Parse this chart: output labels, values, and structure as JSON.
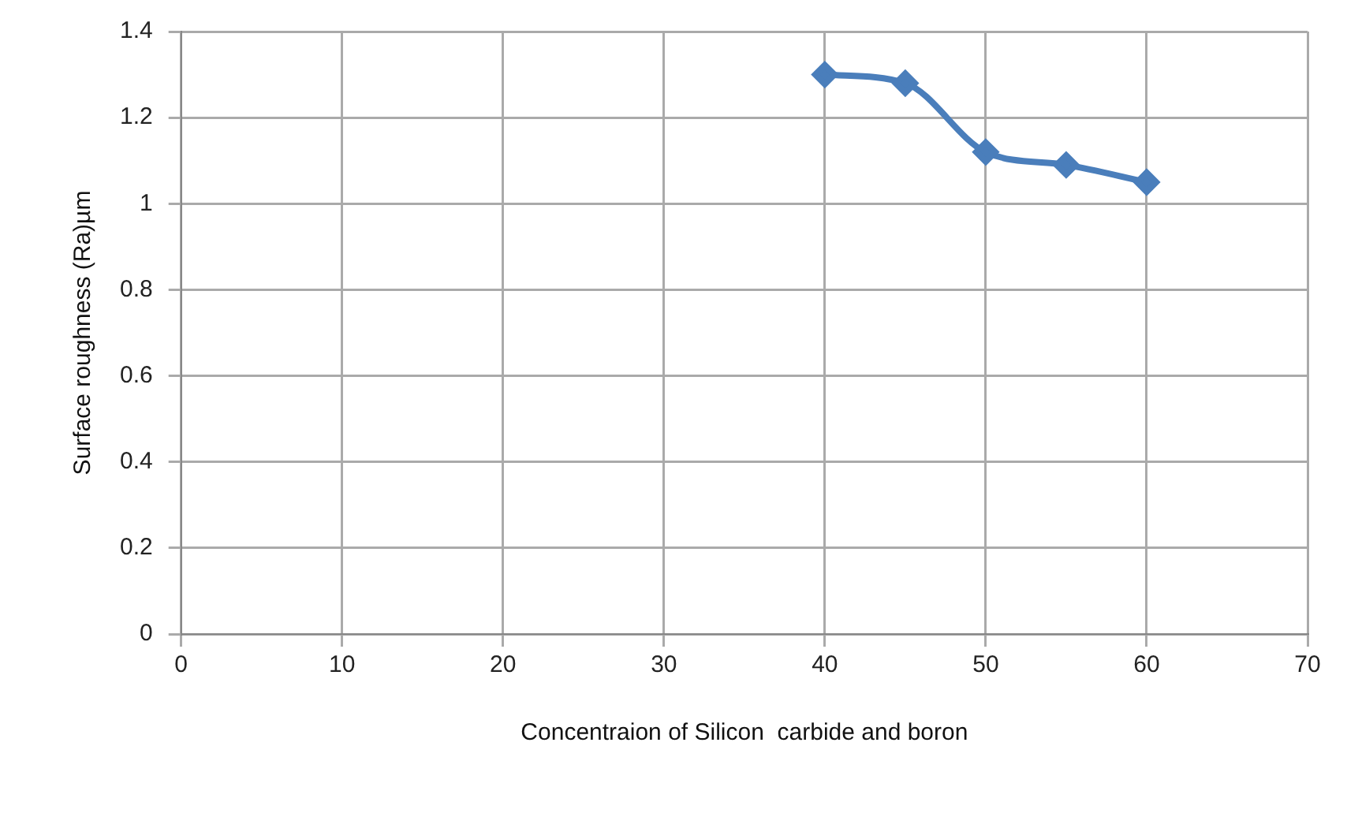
{
  "chart_data": {
    "type": "line",
    "xlabel": "Concentraion of Silicon  carbide and boron",
    "ylabel": "Surface roughness (Ra)µm",
    "x": [
      40,
      45,
      50,
      55,
      60
    ],
    "series": [
      {
        "color": "#4a7ebb",
        "values": [
          1.3,
          1.28,
          1.12,
          1.09,
          1.05
        ]
      }
    ],
    "xlim": [
      0,
      70
    ],
    "xticks": [
      0,
      10,
      20,
      30,
      40,
      50,
      60,
      70
    ],
    "ylim": [
      0,
      1.4
    ],
    "yticks": [
      0,
      0.2,
      0.4,
      0.6,
      0.8,
      1,
      1.2,
      1.4
    ],
    "grid": true,
    "legend": false,
    "marker": "diamond",
    "line_style": "solid"
  }
}
